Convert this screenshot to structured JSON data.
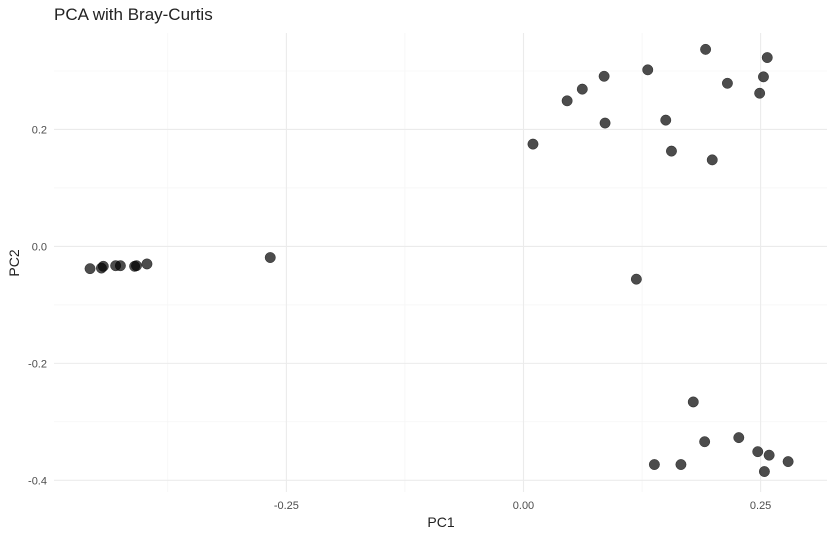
{
  "chart_data": {
    "type": "scatter",
    "title": "PCA with Bray-Curtis",
    "xlabel": "PC1",
    "ylabel": "PC2",
    "xlim": [
      -0.495,
      0.32
    ],
    "ylim": [
      -0.42,
      0.365
    ],
    "x_ticks": [
      -0.25,
      0.0,
      0.25
    ],
    "x_tick_labels": [
      "-0.25",
      "0.00",
      "0.25"
    ],
    "x_minor_ticks": [
      -0.375,
      -0.125,
      0.125
    ],
    "y_ticks": [
      -0.4,
      -0.2,
      0.0,
      0.2
    ],
    "y_tick_labels": [
      "-0.4",
      "-0.2",
      "0.0",
      "0.2"
    ],
    "y_minor_ticks": [
      -0.3,
      -0.1,
      0.1,
      0.3
    ],
    "grid": true,
    "legend": "none",
    "point_color": "#000000",
    "points": [
      {
        "x": -0.457,
        "y": -0.038
      },
      {
        "x": -0.445,
        "y": -0.037
      },
      {
        "x": -0.443,
        "y": -0.034
      },
      {
        "x": -0.43,
        "y": -0.033
      },
      {
        "x": -0.425,
        "y": -0.033
      },
      {
        "x": -0.41,
        "y": -0.034
      },
      {
        "x": -0.408,
        "y": -0.033
      },
      {
        "x": -0.397,
        "y": -0.03
      },
      {
        "x": -0.267,
        "y": -0.019
      },
      {
        "x": 0.01,
        "y": 0.175
      },
      {
        "x": 0.046,
        "y": 0.249
      },
      {
        "x": 0.062,
        "y": 0.269
      },
      {
        "x": 0.085,
        "y": 0.291
      },
      {
        "x": 0.086,
        "y": 0.211
      },
      {
        "x": 0.131,
        "y": 0.302
      },
      {
        "x": 0.15,
        "y": 0.216
      },
      {
        "x": 0.156,
        "y": 0.163
      },
      {
        "x": 0.192,
        "y": 0.337
      },
      {
        "x": 0.199,
        "y": 0.148
      },
      {
        "x": 0.215,
        "y": 0.279
      },
      {
        "x": 0.249,
        "y": 0.262
      },
      {
        "x": 0.253,
        "y": 0.29
      },
      {
        "x": 0.257,
        "y": 0.323
      },
      {
        "x": 0.119,
        "y": -0.056
      },
      {
        "x": 0.179,
        "y": -0.266
      },
      {
        "x": 0.191,
        "y": -0.334
      },
      {
        "x": 0.227,
        "y": -0.327
      },
      {
        "x": 0.138,
        "y": -0.373
      },
      {
        "x": 0.166,
        "y": -0.373
      },
      {
        "x": 0.247,
        "y": -0.351
      },
      {
        "x": 0.259,
        "y": -0.357
      },
      {
        "x": 0.254,
        "y": -0.385
      },
      {
        "x": 0.279,
        "y": -0.368
      }
    ]
  }
}
